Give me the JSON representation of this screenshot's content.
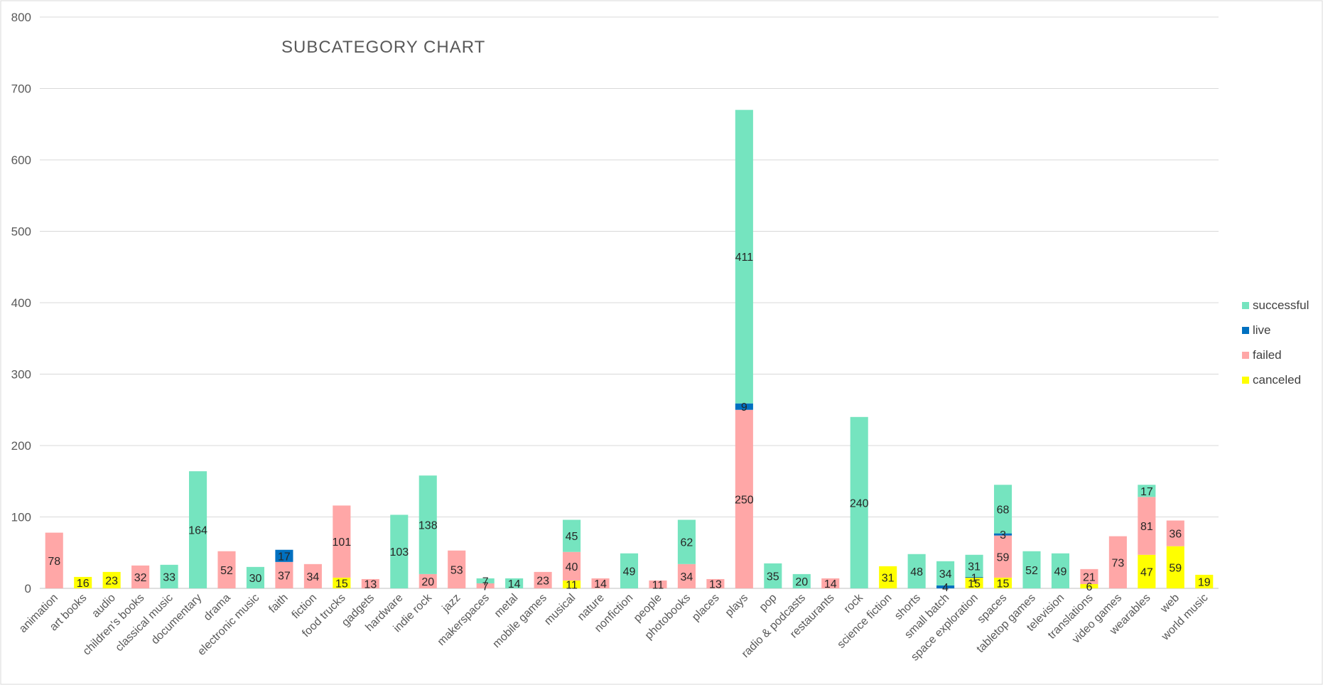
{
  "chart_data": {
    "type": "bar",
    "stacked": true,
    "title": "SUBCATEGORY CHART",
    "xlabel": "",
    "ylabel": "",
    "ylim": [
      0,
      800
    ],
    "yticks": [
      0,
      100,
      200,
      300,
      400,
      500,
      600,
      700,
      800
    ],
    "grid": true,
    "legend_position": "right",
    "categories": [
      "animation",
      "art books",
      "audio",
      "children's books",
      "classical music",
      "documentary",
      "drama",
      "electronic music",
      "faith",
      "fiction",
      "food trucks",
      "gadgets",
      "hardware",
      "indie rock",
      "jazz",
      "makerspaces",
      "metal",
      "mobile games",
      "musical",
      "nature",
      "nonfiction",
      "people",
      "photobooks",
      "places",
      "plays",
      "pop",
      "radio & podcasts",
      "restaurants",
      "rock",
      "science fiction",
      "shorts",
      "small batch",
      "space exploration",
      "spaces",
      "tabletop games",
      "television",
      "translations",
      "video games",
      "wearables",
      "web",
      "world music"
    ],
    "series": [
      {
        "name": "canceled",
        "color": "#ffff00",
        "values": [
          0,
          16,
          23,
          0,
          0,
          0,
          0,
          0,
          0,
          0,
          15,
          0,
          0,
          0,
          0,
          0,
          0,
          0,
          11,
          0,
          0,
          0,
          0,
          0,
          0,
          0,
          0,
          0,
          0,
          31,
          0,
          0,
          15,
          15,
          0,
          0,
          6,
          0,
          47,
          59,
          19
        ]
      },
      {
        "name": "failed",
        "color": "#ffa7a7",
        "values": [
          78,
          0,
          0,
          32,
          0,
          0,
          52,
          0,
          37,
          34,
          101,
          13,
          0,
          20,
          53,
          7,
          0,
          23,
          40,
          14,
          0,
          11,
          34,
          13,
          250,
          0,
          0,
          14,
          0,
          0,
          0,
          0,
          0,
          59,
          0,
          0,
          21,
          73,
          81,
          36,
          0
        ]
      },
      {
        "name": "live",
        "color": "#0070c0",
        "values": [
          0,
          0,
          0,
          0,
          0,
          0,
          0,
          0,
          17,
          0,
          0,
          0,
          0,
          0,
          0,
          0,
          0,
          0,
          0,
          0,
          0,
          0,
          0,
          0,
          9,
          0,
          0,
          0,
          0,
          0,
          0,
          4,
          1,
          3,
          0,
          0,
          0,
          0,
          0,
          0,
          0
        ]
      },
      {
        "name": "successful",
        "color": "#75e4bf",
        "values": [
          0,
          0,
          0,
          0,
          33,
          164,
          0,
          30,
          0,
          0,
          0,
          0,
          103,
          138,
          0,
          7,
          14,
          0,
          45,
          0,
          49,
          0,
          62,
          0,
          411,
          35,
          20,
          0,
          240,
          0,
          48,
          34,
          31,
          68,
          52,
          49,
          0,
          0,
          17,
          0,
          0
        ]
      }
    ],
    "legend_order": [
      "successful",
      "live",
      "failed",
      "canceled"
    ]
  }
}
